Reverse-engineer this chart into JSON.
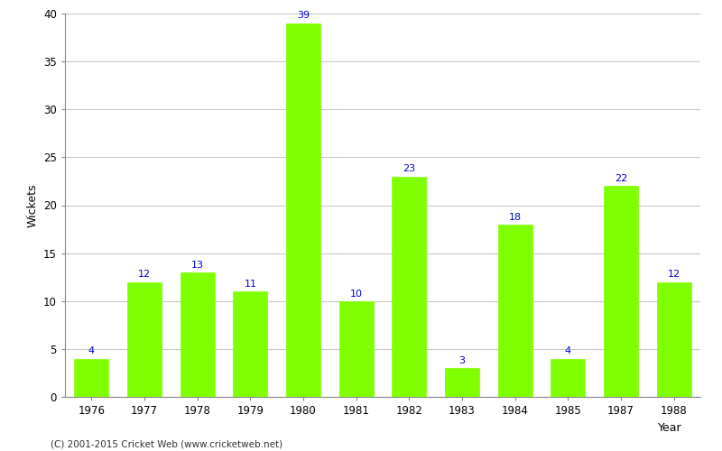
{
  "years": [
    "1976",
    "1977",
    "1978",
    "1979",
    "1980",
    "1981",
    "1982",
    "1983",
    "1984",
    "1985",
    "1987",
    "1988"
  ],
  "wickets": [
    4,
    12,
    13,
    11,
    39,
    10,
    23,
    3,
    18,
    4,
    22,
    12
  ],
  "bar_color": "#7fff00",
  "bar_edge_color": "#7fff00",
  "label_color": "#0000cc",
  "ylabel": "Wickets",
  "ylim": [
    0,
    40
  ],
  "yticks": [
    0,
    5,
    10,
    15,
    20,
    25,
    30,
    35,
    40
  ],
  "grid_color": "#c8c8c8",
  "background_color": "#ffffff",
  "footer": "(C) 2001-2015 Cricket Web (www.cricketweb.net)",
  "label_fontsize": 8,
  "axis_label_fontsize": 9,
  "tick_fontsize": 8.5,
  "year_label": "Year"
}
